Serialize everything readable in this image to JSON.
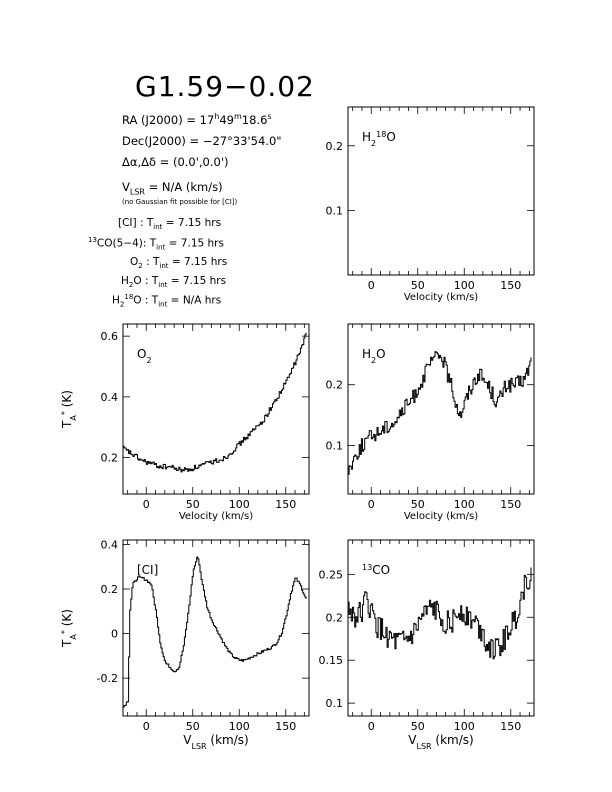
{
  "source": {
    "name": "G1.59−0.02",
    "ra_label": "RA (J2000) =",
    "ra": {
      "h": "17",
      "m": "49",
      "s": "18.6"
    },
    "dec_label": "Dec(J2000) =",
    "dec": "−27°33'54.0\"",
    "offset_label": "Δα,Δδ =",
    "offset": "(0.0',0.0')",
    "vlsr_label": "= N/A (km/s)",
    "note": "(no Gaussian fit possible for [CI])",
    "integrations": [
      {
        "line": "[CI]",
        "value": "7.15 hrs"
      },
      {
        "line": "CO(5−4)",
        "iso": "13",
        "value": "7.15 hrs"
      },
      {
        "line": "O2",
        "value": "7.15 hrs"
      },
      {
        "line": "H2O",
        "value": "7.15 hrs"
      },
      {
        "line": "H2O18",
        "value": "N/A hrs"
      }
    ]
  },
  "chart_data": [
    {
      "id": "h218o",
      "type": "line",
      "label": "H2 18O",
      "xlabel": "Velocity (km/s)",
      "ylabel": "",
      "xlim": [
        -25,
        175
      ],
      "ylim": [
        0,
        0.26
      ],
      "xticks": [
        0,
        50,
        100,
        150
      ],
      "yticks": [
        0.1,
        0.2
      ],
      "series": []
    },
    {
      "id": "o2",
      "type": "line",
      "label": "O2",
      "xlabel": "Velocity (km/s)",
      "ylabel": "TA* (K)",
      "xlim": [
        -25,
        175
      ],
      "ylim": [
        0.08,
        0.64
      ],
      "xticks": [
        0,
        50,
        100,
        150
      ],
      "yticks": [
        0.2,
        0.4,
        0.6
      ],
      "series": [
        {
          "x": [
            -25,
            -15,
            -5,
            5,
            15,
            25,
            35,
            45,
            55,
            65,
            75,
            85,
            95,
            105,
            115,
            125,
            135,
            145,
            155,
            165,
            172
          ],
          "y": [
            0.23,
            0.21,
            0.19,
            0.18,
            0.17,
            0.17,
            0.16,
            0.16,
            0.17,
            0.18,
            0.19,
            0.2,
            0.23,
            0.26,
            0.29,
            0.32,
            0.37,
            0.42,
            0.48,
            0.55,
            0.61
          ]
        }
      ]
    },
    {
      "id": "h2o",
      "type": "line",
      "label": "H2O",
      "xlabel": "Velocity (km/s)",
      "ylabel": "",
      "xlim": [
        -25,
        175
      ],
      "ylim": [
        0.02,
        0.3
      ],
      "xticks": [
        0,
        50,
        100,
        150
      ],
      "yticks": [
        0.1,
        0.2
      ],
      "series": [
        {
          "x": [
            -25,
            -15,
            -5,
            5,
            15,
            25,
            35,
            45,
            55,
            65,
            75,
            85,
            95,
            105,
            115,
            125,
            135,
            145,
            155,
            165,
            172
          ],
          "y": [
            0.06,
            0.09,
            0.11,
            0.12,
            0.13,
            0.14,
            0.16,
            0.18,
            0.21,
            0.24,
            0.25,
            0.2,
            0.15,
            0.19,
            0.22,
            0.2,
            0.17,
            0.2,
            0.2,
            0.21,
            0.24
          ]
        }
      ]
    },
    {
      "id": "ci",
      "type": "line",
      "label": "[CI]",
      "xlabel": "VLSR (km/s)",
      "ylabel": "TA* (K)",
      "xlim": [
        -25,
        175
      ],
      "ylim": [
        -0.37,
        0.42
      ],
      "xticks": [
        0,
        50,
        100,
        150
      ],
      "yticks": [
        -0.2,
        0,
        0.2,
        0.4
      ],
      "series": [
        {
          "x": [
            -25,
            -20,
            -18,
            -15,
            -10,
            -5,
            0,
            5,
            10,
            15,
            20,
            25,
            30,
            35,
            40,
            45,
            50,
            55,
            60,
            65,
            70,
            75,
            80,
            85,
            90,
            95,
            100,
            105,
            110,
            115,
            120,
            125,
            130,
            135,
            140,
            145,
            150,
            155,
            160,
            165,
            170,
            172
          ],
          "y": [
            -0.33,
            -0.3,
            0.1,
            0.22,
            0.25,
            0.25,
            0.24,
            0.22,
            0.1,
            -0.05,
            -0.13,
            -0.15,
            -0.17,
            -0.15,
            -0.05,
            0.1,
            0.28,
            0.35,
            0.22,
            0.12,
            0.06,
            0.02,
            -0.02,
            -0.06,
            -0.09,
            -0.11,
            -0.12,
            -0.12,
            -0.11,
            -0.1,
            -0.09,
            -0.08,
            -0.07,
            -0.06,
            -0.04,
            0.0,
            0.08,
            0.18,
            0.25,
            0.22,
            0.17,
            0.15
          ]
        }
      ]
    },
    {
      "id": "13co",
      "type": "line",
      "label": "13CO",
      "xlabel": "VLSR (km/s)",
      "ylabel": "",
      "xlim": [
        -25,
        175
      ],
      "ylim": [
        0.085,
        0.29
      ],
      "xticks": [
        0,
        50,
        100,
        150
      ],
      "yticks": [
        0.1,
        0.15,
        0.2,
        0.25
      ],
      "series": [
        {
          "x": [
            -25,
            -15,
            -5,
            5,
            15,
            25,
            35,
            45,
            55,
            65,
            75,
            85,
            95,
            105,
            115,
            125,
            135,
            145,
            155,
            165,
            172
          ],
          "y": [
            0.21,
            0.2,
            0.22,
            0.19,
            0.18,
            0.17,
            0.17,
            0.18,
            0.2,
            0.21,
            0.2,
            0.19,
            0.21,
            0.2,
            0.19,
            0.17,
            0.16,
            0.18,
            0.2,
            0.24,
            0.25
          ]
        }
      ]
    }
  ]
}
